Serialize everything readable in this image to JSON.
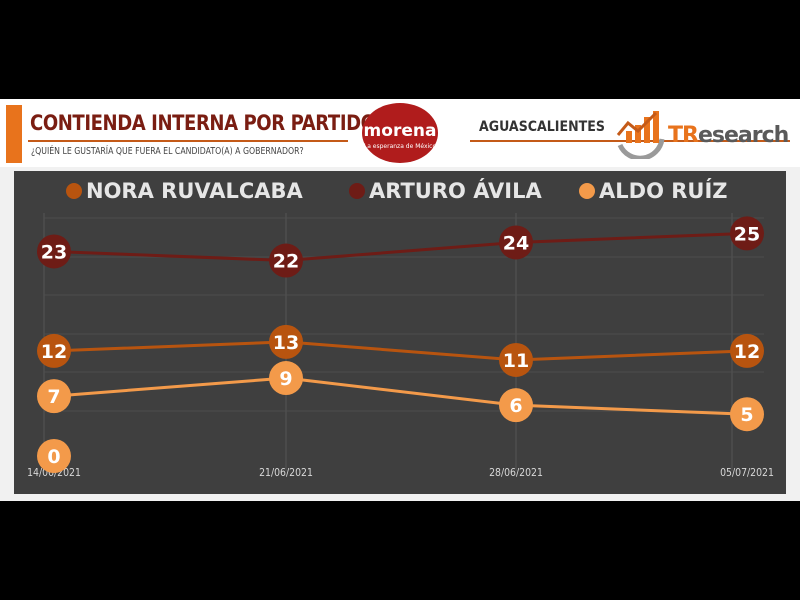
{
  "header": {
    "title": "CONTIENDA INTERNA POR PARTIDO",
    "subtitle": "¿QUIÉN LE GUSTARÍA QUE FUERA EL CANDIDATO(A) A GOBERNADOR?",
    "party_logo_text": "morena",
    "party_logo_tagline": "La esperanza de México",
    "region": "AGUASCALIENTES",
    "brand_prefix": "TR",
    "brand_suffix": "esearch"
  },
  "colors": {
    "accent_orange": "#e8731c",
    "title_red": "#7a1d12",
    "chart_bg": "#3f3f3f",
    "morena_red": "#b01c1c"
  },
  "chart_data": {
    "type": "line",
    "categories": [
      "14/06/2021",
      "21/06/2021",
      "28/06/2021",
      "05/07/2021"
    ],
    "series": [
      {
        "name": "NORA RUVALCABA",
        "color": "#b8540f",
        "values": [
          12,
          13,
          11,
          12
        ]
      },
      {
        "name": "ARTURO ÁVILA",
        "color": "#6e1c16",
        "values": [
          23,
          22,
          24,
          25
        ]
      },
      {
        "name": "ALDO RUÍZ",
        "color": "#f39a4a",
        "values": [
          7,
          9,
          6,
          5
        ]
      }
    ],
    "extra_points": [
      {
        "series": "ALDO RUÍZ",
        "x": "14/06/2021",
        "y": 0
      }
    ],
    "legend_position": "top",
    "grid": true,
    "ylim": [
      0,
      30
    ]
  }
}
